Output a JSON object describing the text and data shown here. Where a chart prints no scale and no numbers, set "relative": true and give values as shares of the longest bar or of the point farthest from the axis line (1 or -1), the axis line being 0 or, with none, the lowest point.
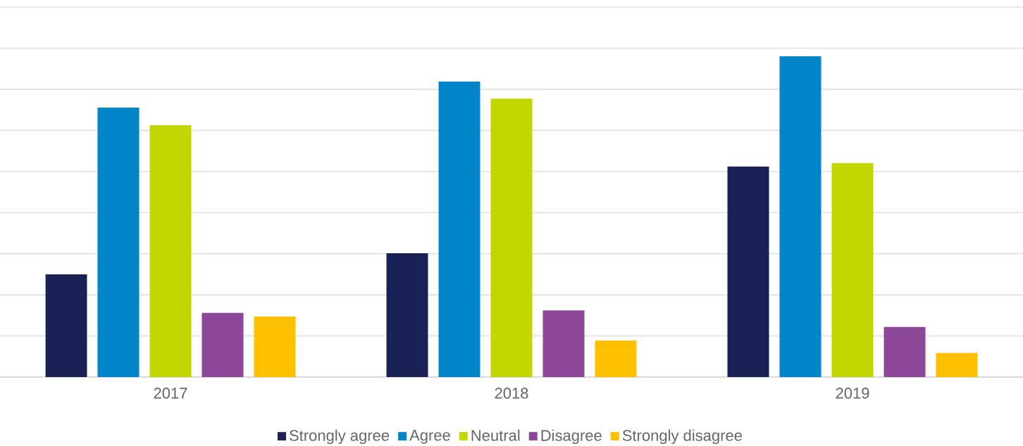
{
  "chart_data": {
    "type": "bar",
    "relative": true,
    "categories": [
      "2017",
      "2018",
      "2019"
    ],
    "series": [
      {
        "name": "Strongly agree",
        "color": "#1a2155",
        "values": [
          0.32,
          0.386,
          0.656
        ]
      },
      {
        "name": "Agree",
        "color": "#0085ca",
        "values": [
          0.84,
          0.921,
          1.0
        ]
      },
      {
        "name": "Neutral",
        "color": "#c4d600",
        "values": [
          0.785,
          0.868,
          0.667
        ]
      },
      {
        "name": "Disagree",
        "color": "#8c4799",
        "values": [
          0.2,
          0.208,
          0.156
        ]
      },
      {
        "name": "Strongly disagree",
        "color": "#ffc000",
        "values": [
          0.189,
          0.114,
          0.075
        ]
      }
    ],
    "grid": "y",
    "legend": "bottom"
  }
}
